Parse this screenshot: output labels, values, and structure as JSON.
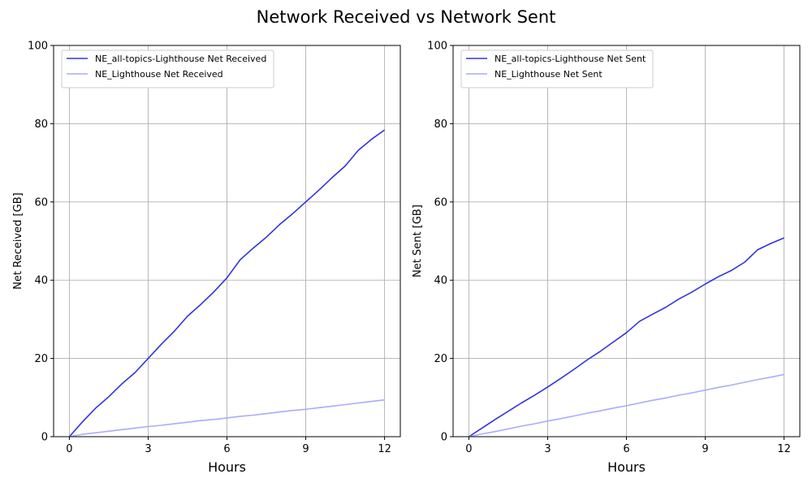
{
  "title": "Network Received vs Network Sent",
  "chart_data": [
    {
      "type": "line",
      "xlabel": "Hours",
      "ylabel": "Net Received [GB]",
      "xlim": [
        -0.6,
        12.6
      ],
      "ylim": [
        0,
        100
      ],
      "xticks": [
        0,
        3,
        6,
        9,
        12
      ],
      "yticks": [
        0,
        20,
        40,
        60,
        80,
        100
      ],
      "grid": true,
      "legend_position": "top-left",
      "series": [
        {
          "name": "NE_all-topics-Lighthouse Net Received",
          "color": "#3333dd",
          "x": [
            0,
            0.5,
            1,
            1.5,
            2,
            2.5,
            3,
            3.5,
            4,
            4.5,
            5,
            5.5,
            6,
            6.5,
            7,
            7.5,
            8,
            8.5,
            9,
            9.5,
            10,
            10.5,
            11,
            11.5,
            12
          ],
          "y": [
            0,
            3.8,
            7.3,
            10.2,
            13.5,
            16.4,
            20,
            23.6,
            27,
            30.8,
            33.8,
            37,
            40.6,
            45.2,
            48.2,
            51,
            54.2,
            57,
            60,
            63,
            66.2,
            69.2,
            73.2,
            76,
            78.4
          ]
        },
        {
          "name": "NE_Lighthouse Net Received",
          "color": "#aaaaff",
          "x": [
            0,
            0.5,
            1,
            1.5,
            2,
            2.5,
            3,
            3.5,
            4,
            4.5,
            5,
            5.5,
            6,
            6.5,
            7,
            7.5,
            8,
            8.5,
            9,
            9.5,
            10,
            10.5,
            11,
            11.5,
            12
          ],
          "y": [
            0,
            0.6,
            1.0,
            1.4,
            1.8,
            2.2,
            2.6,
            2.9,
            3.3,
            3.7,
            4.1,
            4.4,
            4.8,
            5.2,
            5.5,
            5.9,
            6.3,
            6.7,
            7.0,
            7.4,
            7.8,
            8.2,
            8.6,
            9.0,
            9.4
          ]
        }
      ]
    },
    {
      "type": "line",
      "xlabel": "Hours",
      "ylabel": "Net Sent [GB]",
      "xlim": [
        -0.6,
        12.6
      ],
      "ylim": [
        0,
        100
      ],
      "xticks": [
        0,
        3,
        6,
        9,
        12
      ],
      "yticks": [
        0,
        20,
        40,
        60,
        80,
        100
      ],
      "grid": true,
      "legend_position": "top-left",
      "series": [
        {
          "name": "NE_all-topics-Lighthouse Net Sent",
          "color": "#3333dd",
          "x": [
            0,
            0.5,
            1,
            1.5,
            2,
            2.5,
            3,
            3.5,
            4,
            4.5,
            5,
            5.5,
            6,
            6.5,
            7,
            7.5,
            8,
            8.5,
            9,
            9.5,
            10,
            10.5,
            11,
            11.5,
            12
          ],
          "y": [
            0,
            2.2,
            4.4,
            6.5,
            8.6,
            10.6,
            12.7,
            14.9,
            17.2,
            19.6,
            21.8,
            24.2,
            26.6,
            29.5,
            31.3,
            33.1,
            35.2,
            37.0,
            39.0,
            40.9,
            42.5,
            44.6,
            47.8,
            49.4,
            50.8
          ]
        },
        {
          "name": "NE_Lighthouse Net Sent",
          "color": "#aaaaff",
          "x": [
            0,
            0.5,
            1,
            1.5,
            2,
            2.5,
            3,
            3.5,
            4,
            4.5,
            5,
            5.5,
            6,
            6.5,
            7,
            7.5,
            8,
            8.5,
            9,
            9.5,
            10,
            10.5,
            11,
            11.5,
            12
          ],
          "y": [
            0,
            0.7,
            1.3,
            2.0,
            2.7,
            3.3,
            4.0,
            4.6,
            5.3,
            6.0,
            6.6,
            7.3,
            7.9,
            8.6,
            9.3,
            9.9,
            10.6,
            11.2,
            11.9,
            12.6,
            13.2,
            13.9,
            14.6,
            15.2,
            15.9
          ]
        }
      ]
    }
  ]
}
